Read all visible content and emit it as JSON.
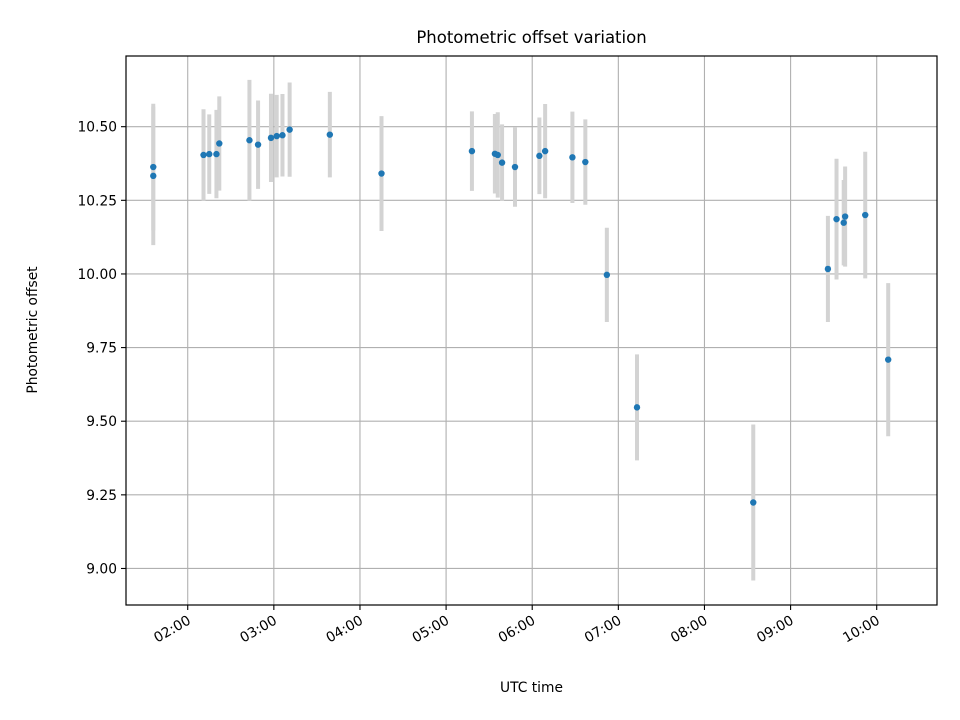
{
  "chart_data": {
    "type": "scatter",
    "title": "Photometric offset variation",
    "xlabel": "UTC time",
    "ylabel": "Photometric offset",
    "x_ticks": [
      "02:00",
      "03:00",
      "04:00",
      "05:00",
      "06:00",
      "07:00",
      "08:00",
      "09:00",
      "10:00"
    ],
    "y_ticks": [
      "9.00",
      "9.25",
      "9.50",
      "9.75",
      "10.00",
      "10.25",
      "10.50"
    ],
    "xlim": [
      "01:17",
      "10:42"
    ],
    "ylim": [
      8.876,
      10.74
    ],
    "grid": true,
    "colors": {
      "marker": "#1f77b4",
      "errorbar": "#d3d3d3",
      "grid": "#b0b0b0"
    },
    "series": [
      {
        "points": [
          {
            "x": "01:36",
            "y": 10.363,
            "err": 0.215
          },
          {
            "x": "01:36",
            "y": 10.333,
            "err": 0.235
          },
          {
            "x": "02:11",
            "y": 10.404,
            "err": 0.155
          },
          {
            "x": "02:15",
            "y": 10.407,
            "err": 0.135
          },
          {
            "x": "02:20",
            "y": 10.407,
            "err": 0.15
          },
          {
            "x": "02:22",
            "y": 10.443,
            "err": 0.16
          },
          {
            "x": "02:43",
            "y": 10.454,
            "err": 0.205
          },
          {
            "x": "02:49",
            "y": 10.439,
            "err": 0.15
          },
          {
            "x": "02:58",
            "y": 10.462,
            "err": 0.15
          },
          {
            "x": "03:02",
            "y": 10.468,
            "err": 0.14
          },
          {
            "x": "03:06",
            "y": 10.471,
            "err": 0.14
          },
          {
            "x": "03:11",
            "y": 10.49,
            "err": 0.16
          },
          {
            "x": "03:39",
            "y": 10.473,
            "err": 0.145
          },
          {
            "x": "04:15",
            "y": 10.341,
            "err": 0.195
          },
          {
            "x": "05:18",
            "y": 10.417,
            "err": 0.135
          },
          {
            "x": "05:34",
            "y": 10.408,
            "err": 0.135
          },
          {
            "x": "05:36",
            "y": 10.404,
            "err": 0.145
          },
          {
            "x": "05:39",
            "y": 10.378,
            "err": 0.13
          },
          {
            "x": "05:48",
            "y": 10.363,
            "err": 0.135
          },
          {
            "x": "06:05",
            "y": 10.401,
            "err": 0.13
          },
          {
            "x": "06:09",
            "y": 10.417,
            "err": 0.16
          },
          {
            "x": "06:28",
            "y": 10.396,
            "err": 0.155
          },
          {
            "x": "06:37",
            "y": 10.38,
            "err": 0.145
          },
          {
            "x": "06:52",
            "y": 9.997,
            "err": 0.16
          },
          {
            "x": "07:13",
            "y": 9.547,
            "err": 0.18
          },
          {
            "x": "08:34",
            "y": 9.224,
            "err": 0.265
          },
          {
            "x": "09:26",
            "y": 10.017,
            "err": 0.18
          },
          {
            "x": "09:32",
            "y": 10.186,
            "err": 0.205
          },
          {
            "x": "09:37",
            "y": 10.174,
            "err": 0.145
          },
          {
            "x": "09:38",
            "y": 10.195,
            "err": 0.17
          },
          {
            "x": "09:52",
            "y": 10.2,
            "err": 0.215
          },
          {
            "x": "10:08",
            "y": 9.709,
            "err": 0.26
          }
        ]
      }
    ]
  }
}
